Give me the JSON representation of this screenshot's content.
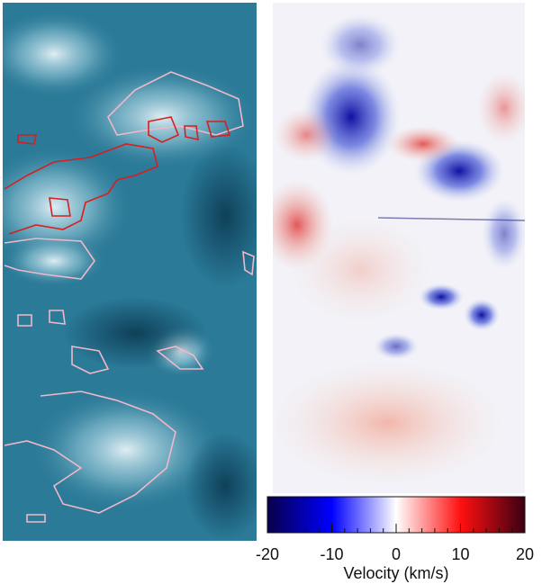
{
  "colorbar": {
    "label": "Velocity (km/s)",
    "lim": [
      -20,
      20
    ],
    "ticks": [
      -20,
      -10,
      0,
      10,
      20
    ]
  }
}
